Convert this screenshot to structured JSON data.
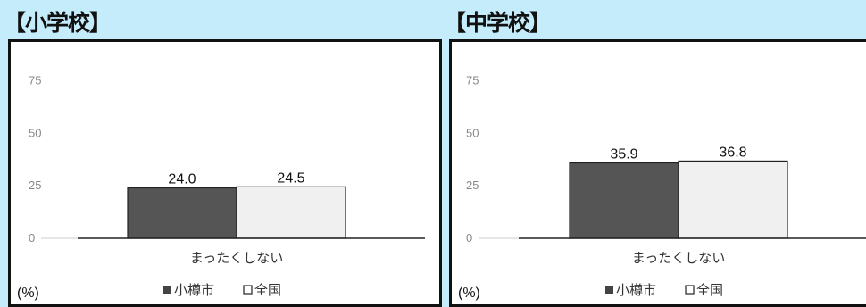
{
  "chart_data": [
    {
      "type": "bar",
      "title": "【小学校】",
      "categories": [
        "まったくしない"
      ],
      "series": [
        {
          "name": "小樽市",
          "values": [
            24.0
          ],
          "color": "#555555"
        },
        {
          "name": "全国",
          "values": [
            24.5
          ],
          "color": "#f0f0f0"
        }
      ],
      "value_labels": [
        "24.0",
        "24.5"
      ],
      "yticks": [
        0,
        25,
        50,
        75
      ],
      "ylim": [
        0,
        85
      ],
      "unit": "(%)",
      "legend": "bottom",
      "grid": false
    },
    {
      "type": "bar",
      "title": "【中学校】",
      "categories": [
        "まったくしない"
      ],
      "series": [
        {
          "name": "小樽市",
          "values": [
            35.9
          ],
          "color": "#555555"
        },
        {
          "name": "全国",
          "values": [
            36.8
          ],
          "color": "#f0f0f0"
        }
      ],
      "value_labels": [
        "35.9",
        "36.8"
      ],
      "yticks": [
        0,
        25,
        50,
        75
      ],
      "ylim": [
        0,
        85
      ],
      "unit": "(%)",
      "legend": "bottom",
      "grid": false
    }
  ]
}
